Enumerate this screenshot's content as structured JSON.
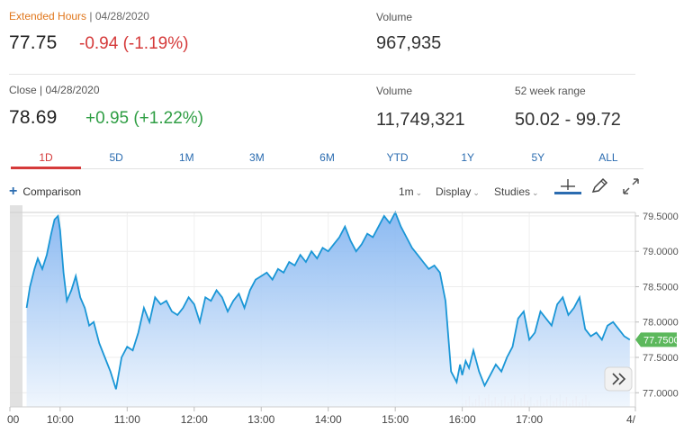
{
  "extended": {
    "label": "Extended Hours",
    "separator": "|",
    "date": "04/28/2020",
    "price": "77.75",
    "change": "-0.94 (-1.19%)",
    "volume_label": "Volume",
    "volume": "967,935"
  },
  "close": {
    "label": "Close | 04/28/2020",
    "price": "78.69",
    "change": "+0.95 (+1.22%)",
    "volume_label": "Volume",
    "volume": "11,749,321",
    "range_label": "52 week range",
    "range": "50.02 - 99.72"
  },
  "tabs": [
    "1D",
    "5D",
    "1M",
    "3M",
    "6M",
    "YTD",
    "1Y",
    "5Y",
    "ALL"
  ],
  "active_tab": "1D",
  "toolbar": {
    "comparison": "Comparison",
    "interval": "1m",
    "display": "Display",
    "studies": "Studies",
    "caret": "⌄"
  },
  "icons": [
    "crosshair-icon",
    "pencil-icon",
    "expand-icon",
    "fast-forward-icon"
  ],
  "colors": {
    "line": "#1a96d6",
    "fill_top": "#7fb2f0",
    "fill_bottom": "#eef5fd",
    "negative": "#d53a3a",
    "positive": "#2f9e44",
    "price_tag": "#5cb85c",
    "tab_link": "#2b6cb0"
  },
  "chart_data": {
    "type": "area",
    "title": "",
    "xlabel": "",
    "ylabel": "",
    "x_ticks": [
      "00",
      "10:00",
      "11:00",
      "12:00",
      "13:00",
      "14:00",
      "15:00",
      "16:00",
      "17:00",
      "4/"
    ],
    "y_ticks": [
      "79.5000",
      "79.0000",
      "78.5000",
      "78.0000",
      "77.5000",
      "77.0000"
    ],
    "ylim": [
      76.8,
      79.55
    ],
    "current_price_label": "77.7500",
    "current_price": 77.75,
    "grid": true,
    "series": [
      {
        "x": [
          "09:30",
          "09:33",
          "09:37",
          "09:40",
          "09:44",
          "09:48",
          "09:52",
          "09:55",
          "09:58",
          "10:00",
          "10:03",
          "10:06",
          "10:10",
          "10:14",
          "10:18",
          "10:22",
          "10:26",
          "10:30",
          "10:35",
          "10:40",
          "10:45",
          "10:50",
          "10:55",
          "11:00",
          "11:05",
          "11:10",
          "11:15",
          "11:20",
          "11:25",
          "11:30",
          "11:35",
          "11:40",
          "11:45",
          "11:50",
          "11:55",
          "12:00",
          "12:05",
          "12:10",
          "12:15",
          "12:20",
          "12:25",
          "12:30",
          "12:35",
          "12:40",
          "12:45",
          "12:50",
          "12:55",
          "13:00",
          "13:05",
          "13:10",
          "13:15",
          "13:20",
          "13:25",
          "13:30",
          "13:35",
          "13:40",
          "13:45",
          "13:50",
          "13:55",
          "14:00",
          "14:05",
          "14:10",
          "14:15",
          "14:20",
          "14:25",
          "14:30",
          "14:35",
          "14:40",
          "14:45",
          "14:50",
          "14:55",
          "15:00",
          "15:05",
          "15:10",
          "15:15",
          "15:20",
          "15:25",
          "15:30",
          "15:35",
          "15:40",
          "15:45",
          "15:50",
          "15:55",
          "15:58",
          "16:00",
          "16:03",
          "16:06",
          "16:10",
          "16:15",
          "16:20",
          "16:25",
          "16:30",
          "16:35",
          "16:40",
          "16:45",
          "16:50",
          "16:55",
          "17:00",
          "17:05",
          "17:10",
          "17:15",
          "17:20",
          "17:25",
          "17:30",
          "17:35",
          "17:40",
          "17:45",
          "17:50",
          "17:55",
          "18:00",
          "18:05",
          "18:10",
          "18:15",
          "18:20",
          "18:25",
          "18:30"
        ],
        "values": [
          78.2,
          78.5,
          78.75,
          78.9,
          78.75,
          78.95,
          79.25,
          79.45,
          79.5,
          79.3,
          78.7,
          78.3,
          78.45,
          78.65,
          78.35,
          78.2,
          77.95,
          78.0,
          77.7,
          77.5,
          77.3,
          77.05,
          77.5,
          77.65,
          77.6,
          77.85,
          78.2,
          78.0,
          78.35,
          78.25,
          78.3,
          78.15,
          78.1,
          78.2,
          78.35,
          78.25,
          78.0,
          78.35,
          78.3,
          78.45,
          78.35,
          78.15,
          78.3,
          78.4,
          78.2,
          78.45,
          78.6,
          78.65,
          78.7,
          78.6,
          78.75,
          78.7,
          78.85,
          78.8,
          78.95,
          78.85,
          79.0,
          78.9,
          79.05,
          79.0,
          79.1,
          79.2,
          79.35,
          79.15,
          79.0,
          79.1,
          79.25,
          79.2,
          79.35,
          79.5,
          79.4,
          79.55,
          79.35,
          79.2,
          79.05,
          78.95,
          78.85,
          78.75,
          78.8,
          78.7,
          78.3,
          77.3,
          77.15,
          77.4,
          77.25,
          77.45,
          77.35,
          77.6,
          77.3,
          77.1,
          77.25,
          77.4,
          77.3,
          77.5,
          77.65,
          78.05,
          78.15,
          77.75,
          77.85,
          78.15,
          78.05,
          77.95,
          78.25,
          78.35,
          78.1,
          78.2,
          78.35,
          77.9,
          77.8,
          77.85,
          77.75,
          77.95,
          78.0,
          77.9,
          77.8,
          77.75
        ]
      }
    ]
  }
}
